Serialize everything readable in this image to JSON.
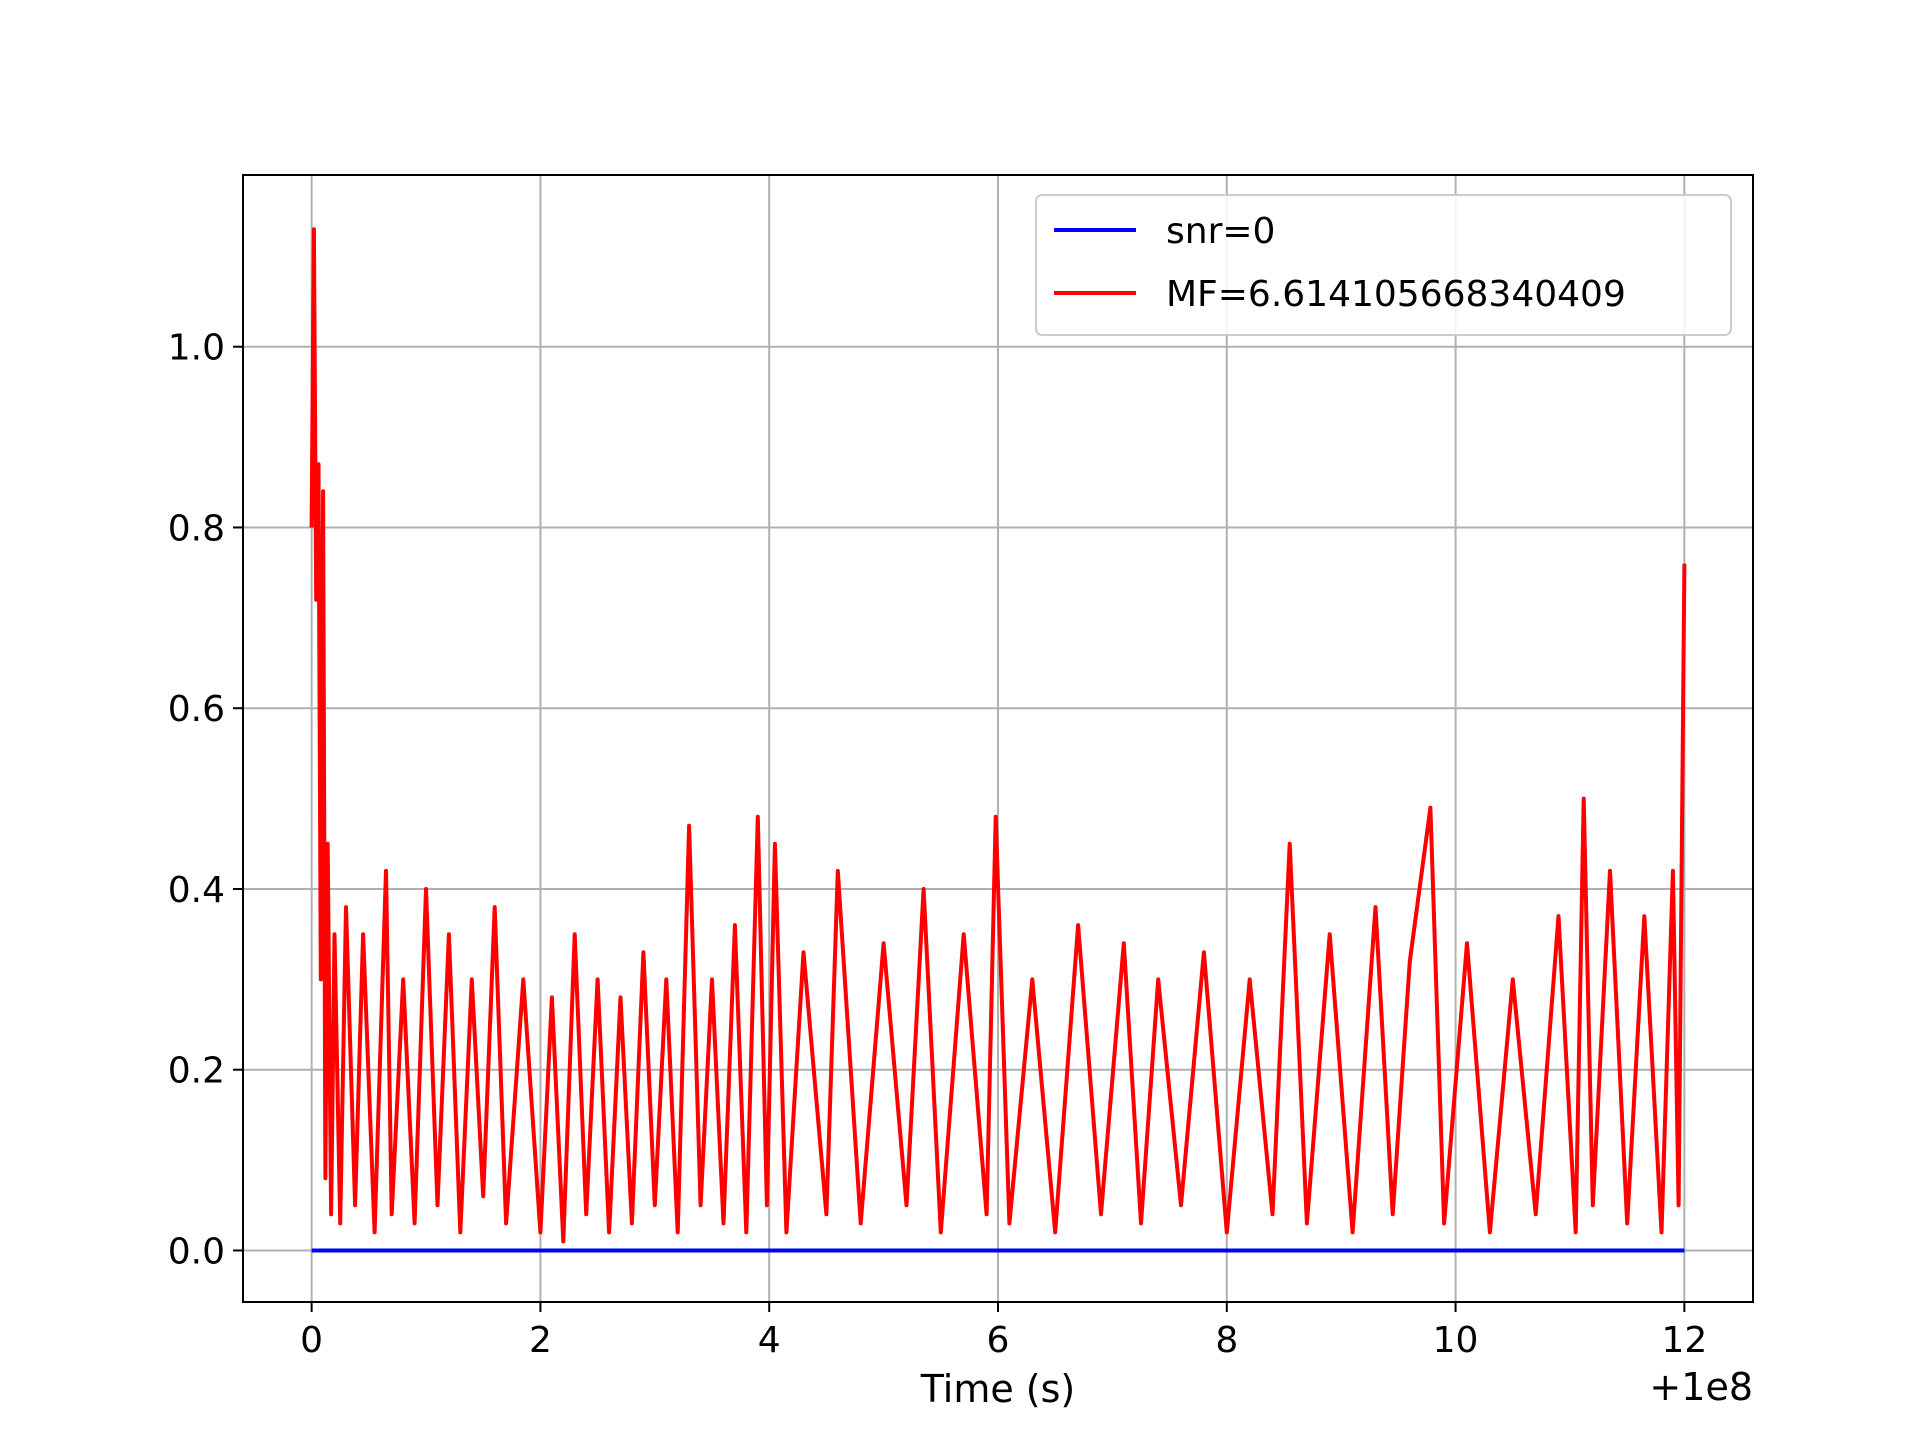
{
  "chart_data": {
    "type": "line",
    "title": "",
    "xlabel": "Time (s)",
    "ylabel": "",
    "x_offset_label": "+1e8",
    "xlim": [
      -0.6,
      12.6
    ],
    "ylim": [
      -0.057,
      1.19
    ],
    "xticks": [
      0,
      2,
      4,
      6,
      8,
      10,
      12
    ],
    "xtick_labels": [
      "0",
      "2",
      "4",
      "6",
      "8",
      "10",
      "12"
    ],
    "yticks": [
      0.0,
      0.2,
      0.4,
      0.6,
      0.8,
      1.0
    ],
    "ytick_labels": [
      "0.0",
      "0.2",
      "0.4",
      "0.6",
      "0.8",
      "1.0"
    ],
    "grid": true,
    "legend_position": "upper right",
    "series": [
      {
        "name": "snr=0",
        "color": "#0000ff",
        "x": [
          0,
          12
        ],
        "y": [
          0.0,
          0.0
        ]
      },
      {
        "name": "MF=6.614105668340409",
        "color": "#ff0000",
        "x": [
          0.0,
          0.02,
          0.04,
          0.06,
          0.08,
          0.1,
          0.12,
          0.14,
          0.17,
          0.2,
          0.25,
          0.3,
          0.38,
          0.45,
          0.55,
          0.65,
          0.7,
          0.8,
          0.9,
          1.0,
          1.1,
          1.2,
          1.3,
          1.4,
          1.5,
          1.6,
          1.7,
          1.85,
          2.0,
          2.1,
          2.2,
          2.3,
          2.4,
          2.5,
          2.6,
          2.7,
          2.8,
          2.9,
          3.0,
          3.1,
          3.2,
          3.3,
          3.4,
          3.5,
          3.6,
          3.7,
          3.8,
          3.9,
          3.98,
          4.05,
          4.15,
          4.3,
          4.5,
          4.6,
          4.8,
          5.0,
          5.2,
          5.35,
          5.5,
          5.7,
          5.9,
          5.98,
          6.1,
          6.3,
          6.5,
          6.7,
          6.9,
          7.1,
          7.25,
          7.4,
          7.6,
          7.8,
          8.0,
          8.2,
          8.4,
          8.55,
          8.7,
          8.9,
          9.1,
          9.3,
          9.45,
          9.6,
          9.78,
          9.9,
          10.1,
          10.3,
          10.5,
          10.7,
          10.9,
          11.05,
          11.12,
          11.2,
          11.35,
          11.5,
          11.65,
          11.8,
          11.9,
          11.95,
          12.0
        ],
        "y": [
          0.8,
          1.13,
          0.72,
          0.87,
          0.3,
          0.84,
          0.08,
          0.45,
          0.04,
          0.35,
          0.03,
          0.38,
          0.05,
          0.35,
          0.02,
          0.42,
          0.04,
          0.3,
          0.03,
          0.4,
          0.05,
          0.35,
          0.02,
          0.3,
          0.06,
          0.38,
          0.03,
          0.3,
          0.02,
          0.28,
          0.01,
          0.35,
          0.04,
          0.3,
          0.02,
          0.28,
          0.03,
          0.33,
          0.05,
          0.3,
          0.02,
          0.47,
          0.05,
          0.3,
          0.03,
          0.36,
          0.02,
          0.48,
          0.05,
          0.45,
          0.02,
          0.33,
          0.04,
          0.42,
          0.03,
          0.34,
          0.05,
          0.4,
          0.02,
          0.35,
          0.04,
          0.48,
          0.03,
          0.3,
          0.02,
          0.36,
          0.04,
          0.34,
          0.03,
          0.3,
          0.05,
          0.33,
          0.02,
          0.3,
          0.04,
          0.45,
          0.03,
          0.35,
          0.02,
          0.38,
          0.04,
          0.32,
          0.49,
          0.03,
          0.34,
          0.02,
          0.3,
          0.04,
          0.37,
          0.02,
          0.5,
          0.05,
          0.42,
          0.03,
          0.37,
          0.02,
          0.42,
          0.05,
          0.76
        ]
      }
    ]
  }
}
